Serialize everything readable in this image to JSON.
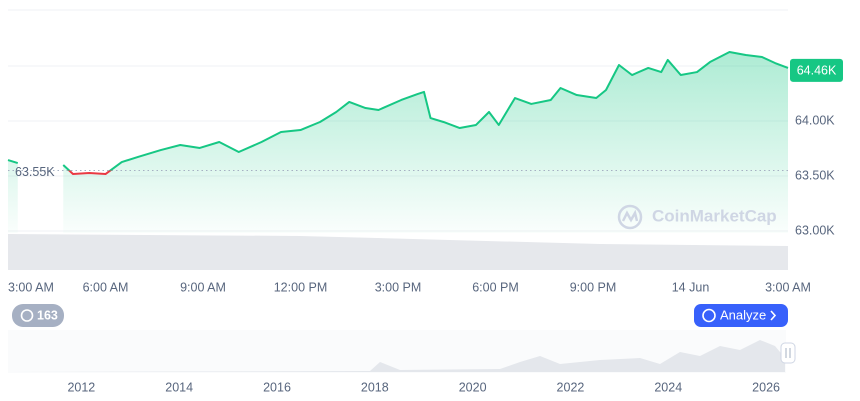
{
  "chart_data": {
    "type": "line",
    "x": [
      0,
      0.3,
      0.5,
      1.7,
      2.0,
      2.5,
      3.0,
      3.5,
      4.0,
      4.7,
      5.3,
      5.9,
      6.5,
      7.1,
      7.8,
      8.4,
      9.0,
      9.6,
      10.1,
      10.5,
      11.0,
      11.4,
      12.1,
      12.6,
      12.8,
      13.0,
      13.4,
      13.9,
      14.4,
      14.8,
      15.1,
      15.6,
      16.1,
      16.7,
      17.0,
      17.5,
      18.1,
      18.4,
      18.8,
      19.2,
      19.7,
      20.1,
      20.3,
      20.7,
      21.2,
      21.6,
      22.2,
      22.7,
      23.2,
      23.6,
      24.0
    ],
    "series": [
      {
        "color": "#16c784",
        "values": [
          63645,
          63618,
          null,
          63600,
          63518,
          63527,
          63518,
          63627,
          63673,
          63736,
          63782,
          63755,
          63809,
          63718,
          63809,
          63900,
          63918,
          63991,
          64082,
          64173,
          64118,
          64100,
          64191,
          64245,
          64264,
          64027,
          63991,
          63936,
          63964,
          64082,
          63964,
          64209,
          64155,
          64191,
          64300,
          64236,
          64209,
          64282,
          64509,
          64418,
          64482,
          64445,
          64555,
          64418,
          64445,
          64536,
          64627,
          64600,
          64582,
          64527,
          64482
        ]
      }
    ],
    "down_color": "#ea3943",
    "xlim": [
      0,
      24
    ],
    "xticks": [
      {
        "value": 0,
        "label": "3:00 AM"
      },
      {
        "value": 3,
        "label": "6:00 AM"
      },
      {
        "value": 6,
        "label": "9:00 AM"
      },
      {
        "value": 9,
        "label": "12:00 PM"
      },
      {
        "value": 12,
        "label": "3:00 PM"
      },
      {
        "value": 15,
        "label": "6:00 PM"
      },
      {
        "value": 18,
        "label": "9:00 PM"
      },
      {
        "value": 21,
        "label": "14 Jun"
      },
      {
        "value": 24,
        "label": "3:00 AM"
      }
    ],
    "ylim": [
      62650,
      65000
    ],
    "yticks": [
      {
        "value": 63000,
        "label": "63.00K"
      },
      {
        "value": 63500,
        "label": "63.50K"
      },
      {
        "value": 64000,
        "label": "64.00K"
      },
      {
        "value": 64500,
        "label": ""
      }
    ],
    "baseline": {
      "value": 63550,
      "label": "63.55K"
    },
    "current": {
      "value": 64460,
      "label": "64.46K"
    },
    "watermark": "CoinMarketCap",
    "grid": true
  },
  "controls": {
    "history_count": 163,
    "analyze_button": "Analyze"
  },
  "navigator": {
    "xlim": [
      2010.5,
      2027
    ],
    "xticks": [
      2012,
      2014,
      2016,
      2018,
      2020,
      2022,
      2024,
      2026
    ]
  }
}
